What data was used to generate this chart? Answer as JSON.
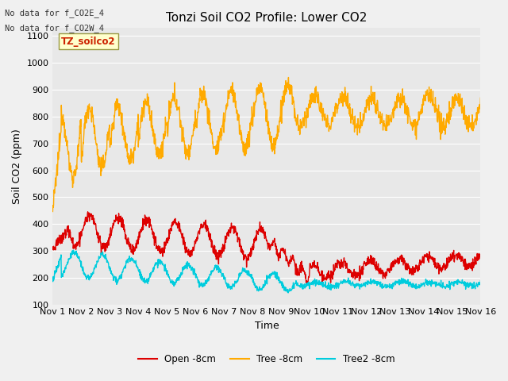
{
  "title": "Tonzi Soil CO2 Profile: Lower CO2",
  "xlabel": "Time",
  "ylabel": "Soil CO2 (ppm)",
  "ylim": [
    100,
    1130
  ],
  "yticks": [
    100,
    200,
    300,
    400,
    500,
    600,
    700,
    800,
    900,
    1000,
    1100
  ],
  "annotation_lines": [
    "No data for f_CO2E_4",
    "No data for f_CO2W_4"
  ],
  "legend_label": "TZ_soilco2",
  "series": {
    "open": {
      "label": "Open -8cm",
      "color": "#dd0000",
      "lw": 1.0
    },
    "tree": {
      "label": "Tree -8cm",
      "color": "#ffaa00",
      "lw": 1.0
    },
    "tree2": {
      "label": "Tree2 -8cm",
      "color": "#00ccdd",
      "lw": 1.0
    }
  },
  "background_color": "#e8e8e8",
  "grid_color": "#ffffff",
  "title_fontsize": 11,
  "axis_label_fontsize": 9,
  "tick_fontsize": 8
}
